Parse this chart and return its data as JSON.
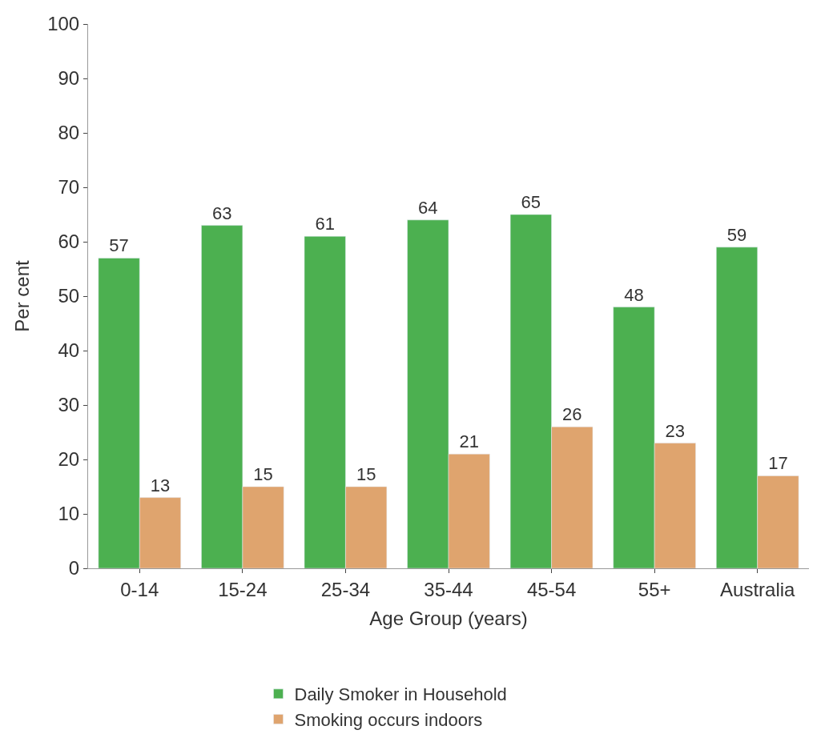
{
  "chart_data": {
    "type": "bar",
    "xlabel": "Age Group (years)",
    "ylabel": "Per cent",
    "categories": [
      "0-14",
      "15-24",
      "25-34",
      "35-44",
      "45-54",
      "55+",
      "Australia"
    ],
    "series": [
      {
        "name": "Daily Smoker in Household",
        "color": "#4cb050",
        "values": [
          57,
          63,
          61,
          64,
          65,
          48,
          59
        ]
      },
      {
        "name": "Smoking occurs indoors",
        "color": "#dfa46e",
        "values": [
          13,
          15,
          15,
          21,
          26,
          23,
          17
        ]
      }
    ],
    "ylim": [
      0,
      100
    ],
    "yticks": [
      0,
      10,
      20,
      30,
      40,
      50,
      60,
      70,
      80,
      90,
      100
    ],
    "data_labels": true,
    "legend": "bottom"
  }
}
